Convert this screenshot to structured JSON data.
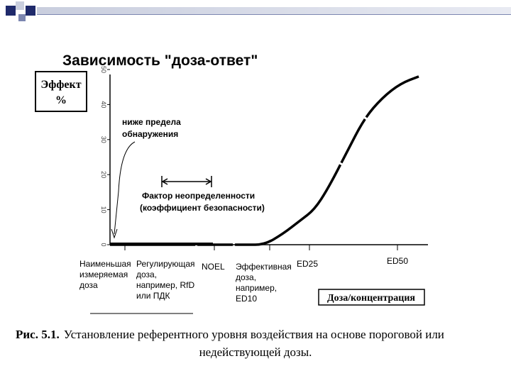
{
  "decor": {
    "colors": {
      "navy": "#1f2a6b",
      "light": "#c9cede",
      "mid": "#7c86b0"
    }
  },
  "caption": {
    "label": "Рис. 5.1.",
    "line1": "Установление референтного уровня воздействия на основе пороговой или",
    "line2": "недействующей дозы."
  },
  "chart_data": {
    "type": "line",
    "title": "Зависимость \"доза-ответ\"",
    "ylabel_line1": "Эффект",
    "ylabel_line2": "%",
    "xlabel": "Доза/концентрация",
    "y_ticks": [
      "0",
      "10",
      "20",
      "30",
      "40",
      "50"
    ],
    "ylim": [
      0,
      50
    ],
    "grid": false,
    "annotations": {
      "detection_line1": "ниже предела",
      "detection_line2": "обнаружения",
      "uncertainty_line1": "Фактор неопределенности",
      "uncertainty_line2": "(коэффициент безопасности)"
    },
    "x_labels": [
      {
        "lines": [
          "Наименьшая",
          "измеряемая",
          "доза"
        ]
      },
      {
        "lines": [
          "Регулирующая",
          "доза,",
          "например, RfD",
          "или ПДК"
        ]
      },
      {
        "lines": [
          "NOEL"
        ]
      },
      {
        "lines": [
          "Эффективная",
          "доза,",
          "например,",
          "ED10"
        ]
      },
      {
        "lines": [
          "ED25"
        ]
      },
      {
        "lines": [
          "ED50"
        ]
      }
    ],
    "series": [
      {
        "x": [
          0,
          2,
          4,
          7,
          10,
          12,
          15,
          17,
          19,
          21,
          22.5,
          24,
          26,
          28,
          30,
          32,
          34
        ],
        "y": [
          0,
          0,
          0,
          0,
          0,
          0,
          0,
          0,
          3,
          7,
          10,
          16,
          26,
          36,
          42,
          46,
          48
        ]
      }
    ]
  }
}
